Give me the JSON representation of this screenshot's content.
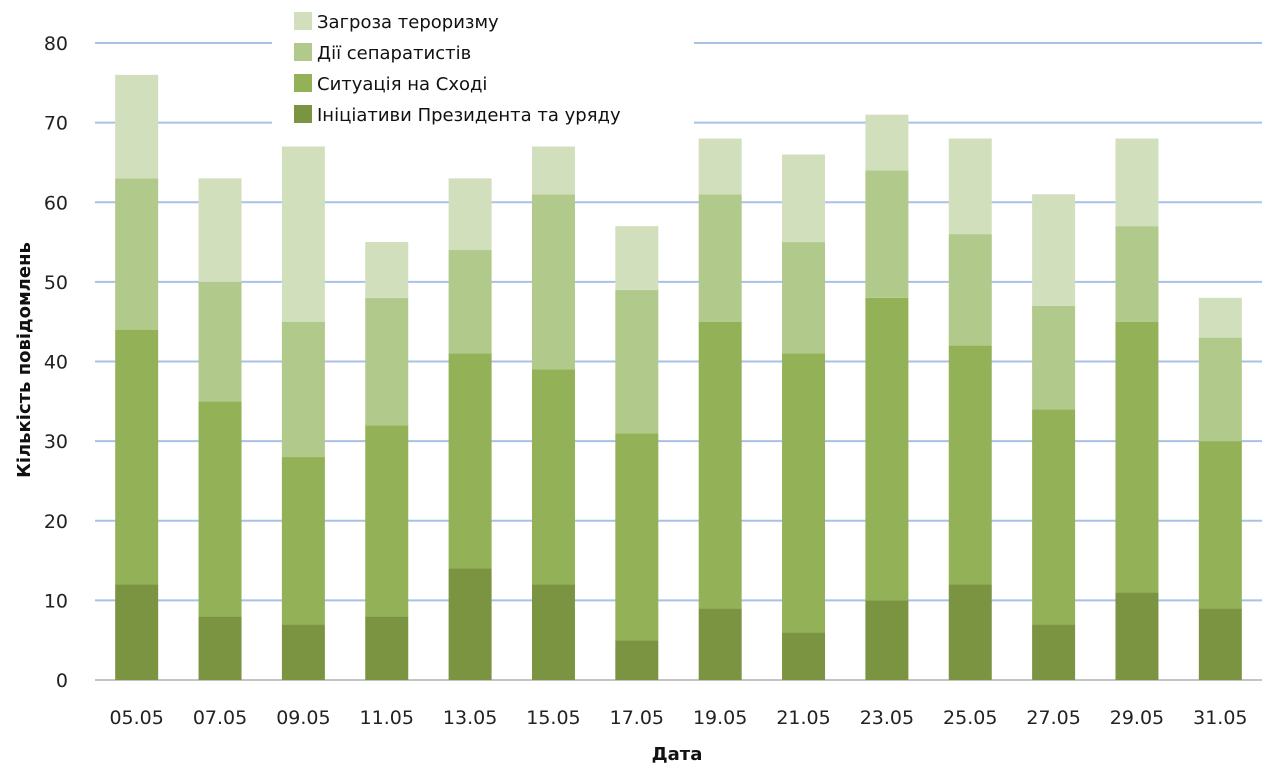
{
  "chart_data": {
    "type": "bar",
    "stacked": true,
    "title": "",
    "xlabel": "Дата",
    "ylabel": "Кількість повідомлень",
    "ylim": [
      0,
      80
    ],
    "yticks": [
      0,
      10,
      20,
      30,
      40,
      50,
      60,
      70,
      80
    ],
    "grid": true,
    "legend_position": "top-center",
    "categories": [
      "05.05",
      "07.05",
      "09.05",
      "11.05",
      "13.05",
      "15.05",
      "17.05",
      "19.05",
      "21.05",
      "23.05",
      "25.05",
      "27.05",
      "29.05",
      "31.05"
    ],
    "series": [
      {
        "name": "Ініціативи Президента та уряду",
        "color": "#7a9441",
        "values": [
          12,
          8,
          7,
          8,
          14,
          12,
          5,
          9,
          6,
          10,
          12,
          7,
          11,
          9
        ]
      },
      {
        "name": "Ситуація на Сході",
        "color": "#93b258",
        "values": [
          32,
          27,
          21,
          24,
          27,
          27,
          26,
          36,
          35,
          38,
          30,
          27,
          34,
          21
        ]
      },
      {
        "name": "Дії сепаратистів",
        "color": "#b1c98a",
        "values": [
          19,
          15,
          17,
          16,
          13,
          22,
          18,
          16,
          14,
          16,
          14,
          13,
          12,
          13
        ]
      },
      {
        "name": "Загроза тероризму",
        "color": "#d2dfbd",
        "values": [
          13,
          13,
          22,
          7,
          9,
          6,
          8,
          7,
          11,
          7,
          12,
          14,
          11,
          5
        ]
      }
    ],
    "gridline_color": "#a9c1e6"
  }
}
